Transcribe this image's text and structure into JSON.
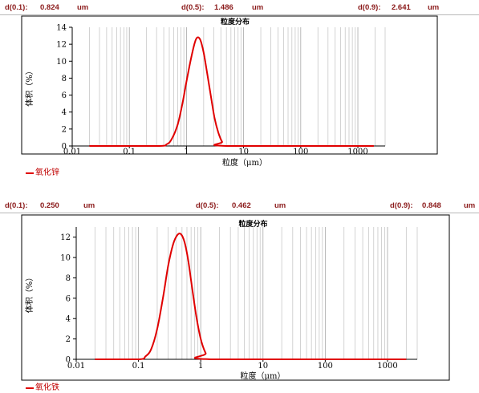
{
  "colors": {
    "curve": "#e00000",
    "dvalue": "#8b1a1a",
    "grid": "#c8c8c8",
    "axis": "#000000"
  },
  "chart_data": [
    {
      "type": "line",
      "title": "粒度分布",
      "xlabel": "粒度（μm）",
      "ylabel": "体积（%）",
      "x_scale": "log",
      "xlim": [
        0.01,
        3000
      ],
      "ylim": [
        0,
        14
      ],
      "x_ticks": [
        "0.01",
        "0.1",
        "1",
        "10",
        "100",
        "1000"
      ],
      "y_ticks": [
        "0",
        "2",
        "4",
        "6",
        "8",
        "10",
        "12",
        "14"
      ],
      "grid": true,
      "legend": "bottom-left",
      "d_values": [
        {
          "label": "d(0.1):",
          "value": "0.824",
          "unit": "um"
        },
        {
          "label": "d(0.5):",
          "value": "1.486",
          "unit": "um"
        },
        {
          "label": "d(0.9):",
          "value": "2.641",
          "unit": "um"
        }
      ],
      "series": [
        {
          "name": "氧化锌",
          "x": [
            0.02,
            0.3,
            0.45,
            0.55,
            0.7,
            0.85,
            1.0,
            1.2,
            1.4,
            1.55,
            1.75,
            2.0,
            2.3,
            2.7,
            3.1,
            3.6,
            4.2,
            5.0,
            1900
          ],
          "y": [
            0,
            0,
            0.2,
            0.8,
            2.5,
            5.0,
            7.6,
            10.3,
            12.2,
            12.8,
            12.5,
            11.0,
            8.6,
            5.7,
            3.3,
            1.6,
            0.5,
            0,
            0
          ]
        }
      ]
    },
    {
      "type": "line",
      "title": "粒度分布",
      "xlabel": "粒度（μm）",
      "ylabel": "体积（%）",
      "x_scale": "log",
      "xlim": [
        0.01,
        3000
      ],
      "ylim": [
        0,
        13
      ],
      "x_ticks": [
        "0.01",
        "0.1",
        "1",
        "10",
        "100",
        "1000"
      ],
      "y_ticks": [
        "0",
        "2",
        "4",
        "6",
        "8",
        "10",
        "12"
      ],
      "grid": true,
      "legend": "bottom-left",
      "d_values": [
        {
          "label": "d(0.1):",
          "value": "0.250",
          "unit": "um"
        },
        {
          "label": "d(0.5):",
          "value": "0.462",
          "unit": "um"
        },
        {
          "label": "d(0.9):",
          "value": "0.848",
          "unit": "um"
        }
      ],
      "series": [
        {
          "name": "氧化铁",
          "x": [
            0.02,
            0.1,
            0.13,
            0.16,
            0.2,
            0.25,
            0.3,
            0.36,
            0.42,
            0.48,
            0.55,
            0.63,
            0.72,
            0.85,
            1.0,
            1.2,
            1.45,
            2000
          ],
          "y": [
            0,
            0,
            0.3,
            1.0,
            3.0,
            6.2,
            9.2,
            11.3,
            12.2,
            12.3,
            11.5,
            9.7,
            7.2,
            4.2,
            2.0,
            0.6,
            0,
            0
          ]
        }
      ]
    }
  ]
}
